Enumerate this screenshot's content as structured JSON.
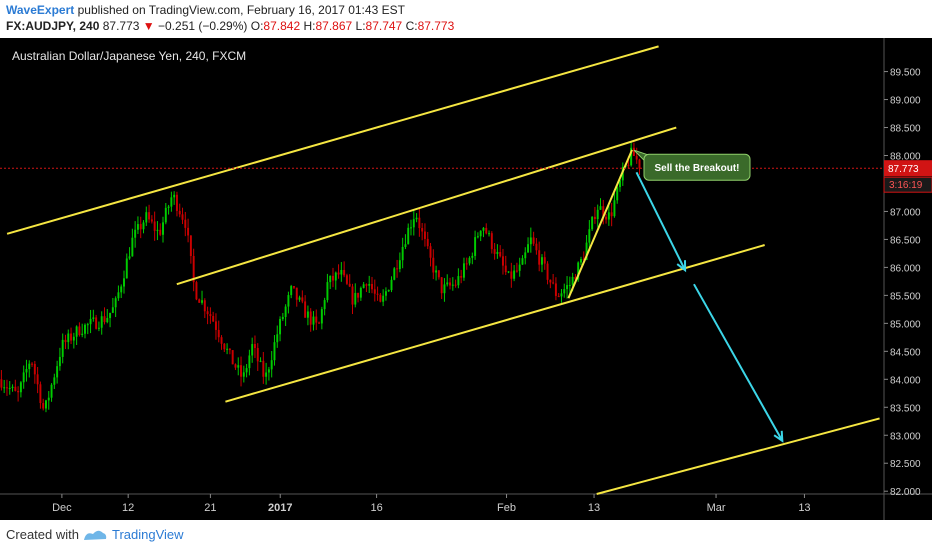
{
  "header": {
    "publisher": "WaveExpert",
    "published_text": "published on TradingView.com, February 16, 2017 01:43 EST",
    "symbol": "FX:AUDJPY, 240",
    "last": "87.773",
    "change": "−0.251 (−0.29%)",
    "o_label": "O:",
    "o_value": "87.842",
    "h_label": "H:",
    "h_value": "87.867",
    "l_label": "L:",
    "l_value": "87.747",
    "c_label": "C:",
    "c_value": "87.773"
  },
  "footer": {
    "created_with": "Created with",
    "brand": "TradingView"
  },
  "colors": {
    "background": "#000000",
    "up_candle": "#00cc00",
    "down_candle": "#cc0000",
    "channel": "#f5e642",
    "arrow": "#3cd6e8",
    "price_tag": "#d11414",
    "annotation_bg": "#3a6a2a"
  },
  "chart_data": {
    "type": "candlestick",
    "title": "Australian Dollar/Japanese Yen, 240, FXCM",
    "y_axis": {
      "ticks": [
        "89.500",
        "89.000",
        "88.500",
        "88.000",
        "87.500",
        "87.000",
        "86.500",
        "86.000",
        "85.500",
        "85.000",
        "84.500",
        "84.000",
        "83.500",
        "83.000",
        "82.500",
        "82.000"
      ],
      "range": [
        81.95,
        90.1
      ]
    },
    "x_axis": {
      "ticks": [
        "Dec",
        "12",
        "21",
        "2017",
        "16",
        "Feb",
        "13",
        "Mar",
        "13"
      ]
    },
    "last_price": "87.773",
    "countdown": "3:16:19",
    "annotation": "Sell the Breakout!",
    "price_path": [
      [
        0,
        84.0
      ],
      [
        0.02,
        83.7
      ],
      [
        0.035,
        84.4
      ],
      [
        0.05,
        83.4
      ],
      [
        0.07,
        84.6
      ],
      [
        0.09,
        84.9
      ],
      [
        0.12,
        85.1
      ],
      [
        0.13,
        85.3
      ],
      [
        0.15,
        86.5
      ],
      [
        0.165,
        86.9
      ],
      [
        0.18,
        86.6
      ],
      [
        0.195,
        87.3
      ],
      [
        0.21,
        86.8
      ],
      [
        0.22,
        85.6
      ],
      [
        0.24,
        85.1
      ],
      [
        0.26,
        84.4
      ],
      [
        0.275,
        84.0
      ],
      [
        0.285,
        84.6
      ],
      [
        0.3,
        84.0
      ],
      [
        0.315,
        84.9
      ],
      [
        0.33,
        85.6
      ],
      [
        0.345,
        85.2
      ],
      [
        0.36,
        84.9
      ],
      [
        0.37,
        85.7
      ],
      [
        0.385,
        85.9
      ],
      [
        0.4,
        85.4
      ],
      [
        0.415,
        85.8
      ],
      [
        0.43,
        85.3
      ],
      [
        0.445,
        85.9
      ],
      [
        0.46,
        86.6
      ],
      [
        0.47,
        87.0
      ],
      [
        0.485,
        86.2
      ],
      [
        0.5,
        85.6
      ],
      [
        0.515,
        85.7
      ],
      [
        0.53,
        86.1
      ],
      [
        0.545,
        86.8
      ],
      [
        0.56,
        86.3
      ],
      [
        0.575,
        85.8
      ],
      [
        0.59,
        86.0
      ],
      [
        0.6,
        86.5
      ],
      [
        0.615,
        86.0
      ],
      [
        0.63,
        85.5
      ],
      [
        0.645,
        85.7
      ],
      [
        0.66,
        86.2
      ],
      [
        0.675,
        87.1
      ],
      [
        0.69,
        86.9
      ],
      [
        0.705,
        87.7
      ],
      [
        0.715,
        88.05
      ],
      [
        0.725,
        87.8
      ]
    ],
    "channel_lines": [
      {
        "x1": 0.008,
        "y1": 86.6,
        "x2": 0.745,
        "y2": 89.95
      },
      {
        "x1": 0.2,
        "y1": 85.7,
        "x2": 0.765,
        "y2": 88.5
      },
      {
        "x1": 0.255,
        "y1": 83.6,
        "x2": 0.865,
        "y2": 86.4
      },
      {
        "x1": 0.675,
        "y1": 81.95,
        "x2": 0.995,
        "y2": 83.3
      },
      {
        "x1": 0.643,
        "y1": 85.45,
        "x2": 0.715,
        "y2": 88.1
      }
    ],
    "arrows": [
      {
        "x1": 0.72,
        "y1": 87.7,
        "x2": 0.775,
        "y2": 85.95
      },
      {
        "x1": 0.785,
        "y1": 85.7,
        "x2": 0.885,
        "y2": 82.9
      }
    ]
  }
}
